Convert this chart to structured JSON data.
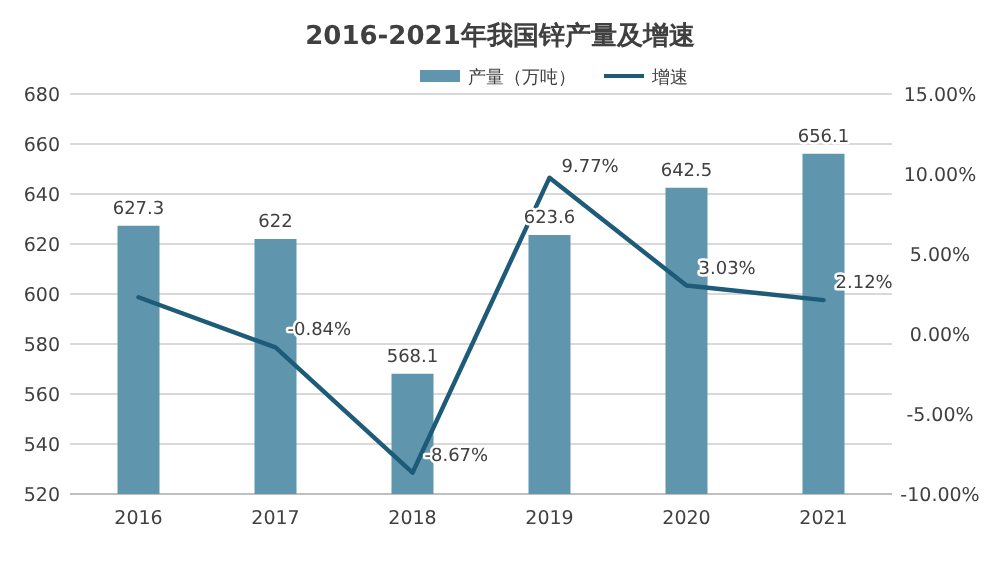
{
  "chart_data": {
    "type": "bar",
    "title": "2016-2021年我国锌产量及增速",
    "categories": [
      "2016",
      "2017",
      "2018",
      "2019",
      "2020",
      "2021"
    ],
    "series": [
      {
        "name": "产量（万吨）",
        "color": "#5f96ad",
        "values": [
          627.3,
          622,
          568.1,
          623.6,
          642.5,
          656.1
        ],
        "value_labels": [
          "627.3",
          "622",
          "568.1",
          "623.6",
          "642.5",
          "656.1"
        ]
      },
      {
        "name": "增速",
        "type": "line",
        "axis": "y2",
        "color": "#1d5b78",
        "values": [
          2.3,
          -0.84,
          -8.67,
          9.77,
          3.03,
          2.12
        ],
        "value_labels": [
          null,
          "-0.84%",
          "-8.67%",
          "9.77%",
          "3.03%",
          "2.12%"
        ]
      }
    ],
    "ylim": [
      520,
      680
    ],
    "yticks": [
      520,
      540,
      560,
      580,
      600,
      620,
      640,
      660,
      680
    ],
    "y2lim": [
      -10,
      15
    ],
    "y2ticks": [
      {
        "value": -10,
        "label": "-10.00%"
      },
      {
        "value": -5,
        "label": "-5.00%"
      },
      {
        "value": 0,
        "label": "0.00%"
      },
      {
        "value": 5,
        "label": "5.00%"
      },
      {
        "value": 10,
        "label": "10.00%"
      },
      {
        "value": 15,
        "label": "15.00%"
      }
    ],
    "grid": "y",
    "legend": "top",
    "marker": "none",
    "line_style": "solid"
  }
}
